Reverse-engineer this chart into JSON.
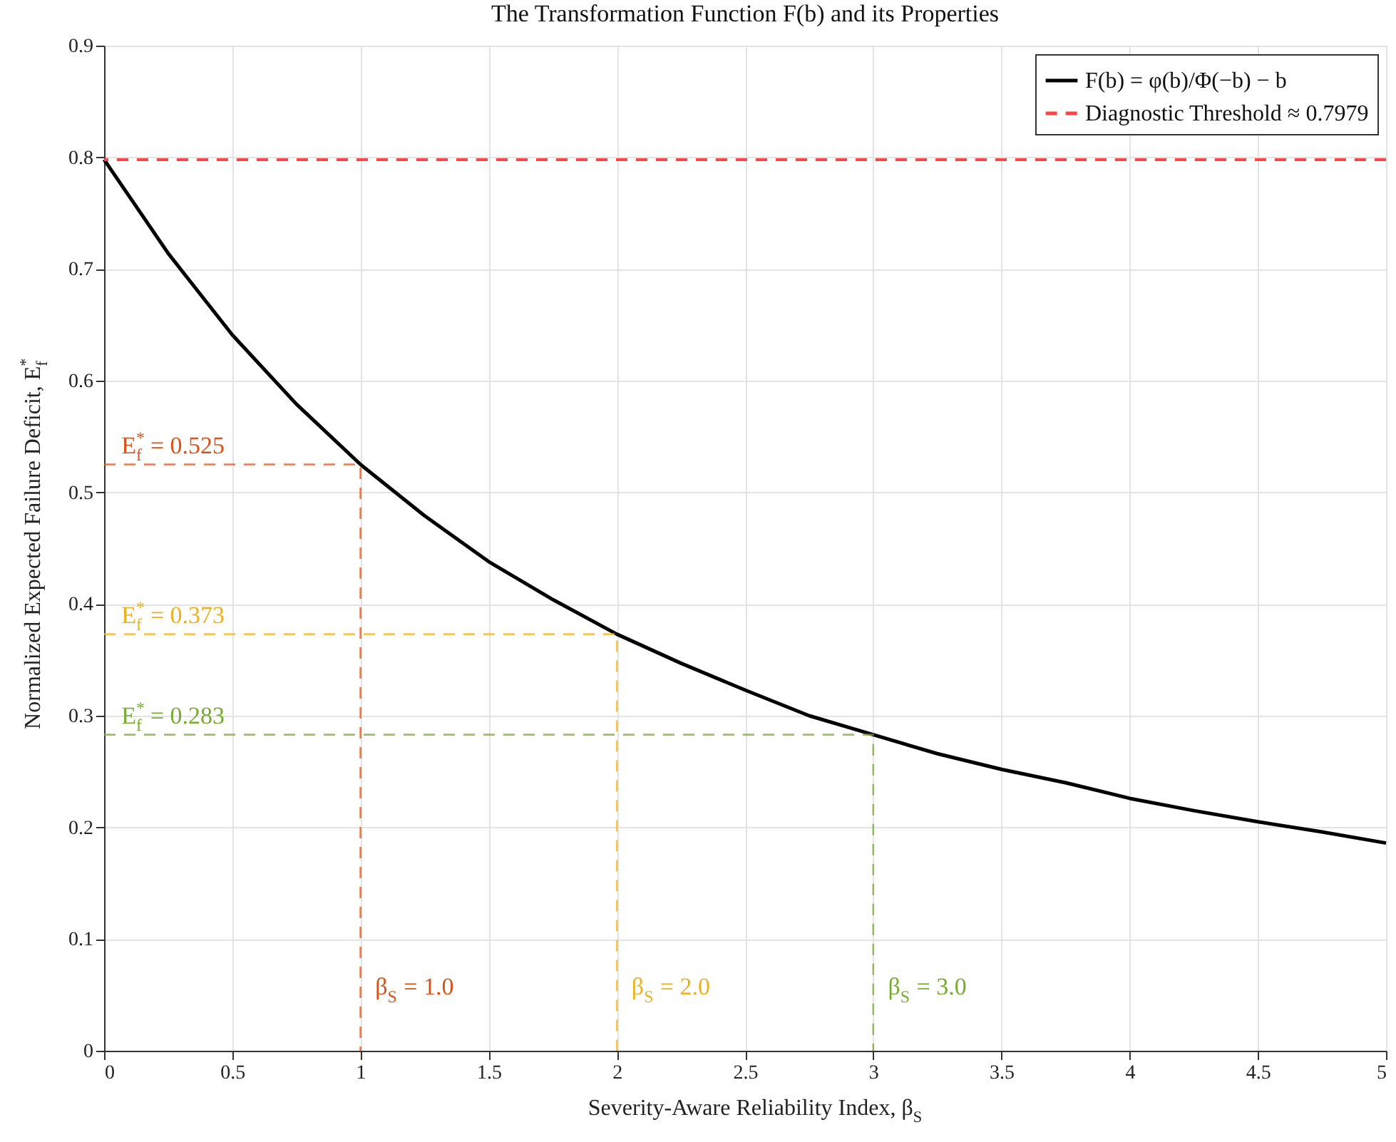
{
  "chart_data": {
    "type": "line",
    "title": "The Transformation Function F(b) and its Properties",
    "xlabel": "Severity-Aware Reliability Index, β$_{S}$",
    "ylabel": "Normalized Expected Failure Deficit, E$_{f}$$^{*}$",
    "xlim": [
      0,
      5
    ],
    "xticks": [
      0,
      0.5,
      1,
      1.5,
      2,
      2.5,
      3,
      3.5,
      4,
      4.5,
      5
    ],
    "ylim": [
      0,
      0.9
    ],
    "yticks": [
      0,
      0.1,
      0.2,
      0.3,
      0.4,
      0.5,
      0.6,
      0.7,
      0.8,
      0.9
    ],
    "grid": true,
    "legend": "top right",
    "marker": "none",
    "series": [
      {
        "name": "F(b) = φ(b)/Φ(−b) − b",
        "color": "#000000",
        "line_style": "solid",
        "x": [
          0,
          0.25,
          0.5,
          0.75,
          1,
          1.25,
          1.5,
          1.75,
          2,
          2.25,
          2.5,
          2.75,
          3,
          3.25,
          3.5,
          3.75,
          4,
          4.25,
          4.5,
          4.75,
          5
        ],
        "values": [
          0.798,
          0.714,
          0.641,
          0.579,
          0.525,
          0.479,
          0.438,
          0.404,
          0.373,
          0.347,
          0.323,
          0.3,
          0.283,
          0.266,
          0.252,
          0.24,
          0.226,
          0.215,
          0.205,
          0.196,
          0.186
        ]
      },
      {
        "color": "#d95319",
        "line_style": "dashed",
        "x": [
          0,
          1,
          1
        ],
        "values": [
          0.525,
          0.525,
          0
        ]
      },
      {
        "color": "#edb120",
        "line_style": "dashed",
        "x": [
          0,
          2,
          2
        ],
        "values": [
          0.373,
          0.373,
          0
        ]
      },
      {
        "color": "#77ac30",
        "line_style": "dashed",
        "x": [
          0,
          3,
          3
        ],
        "values": [
          0.283,
          0.283,
          0
        ]
      }
    ],
    "ref_lines": [
      {
        "axis": "y",
        "value": 0.7979,
        "label": "Diagnostic Threshold ≈ 0.7979",
        "color": "#ff4444",
        "line_style": "dashed"
      }
    ],
    "annotations": [
      {
        "text": "E$_{f}$$^{*}$ = 0.525",
        "x": 0,
        "y": 0.525
      },
      {
        "text": "β$_{S}$ = 1.0",
        "x": 1,
        "y": 0.04
      },
      {
        "text": "E$_{f}$$^{*}$ = 0.373",
        "x": 0,
        "y": 0.373
      },
      {
        "text": "β$_{S}$ = 2.0",
        "x": 2,
        "y": 0.04
      },
      {
        "text": "E$_{f}$$^{*}$ = 0.283",
        "x": 0,
        "y": 0.283
      },
      {
        "text": "β$_{S}$ = 3.0",
        "x": 3,
        "y": 0.04
      }
    ]
  }
}
